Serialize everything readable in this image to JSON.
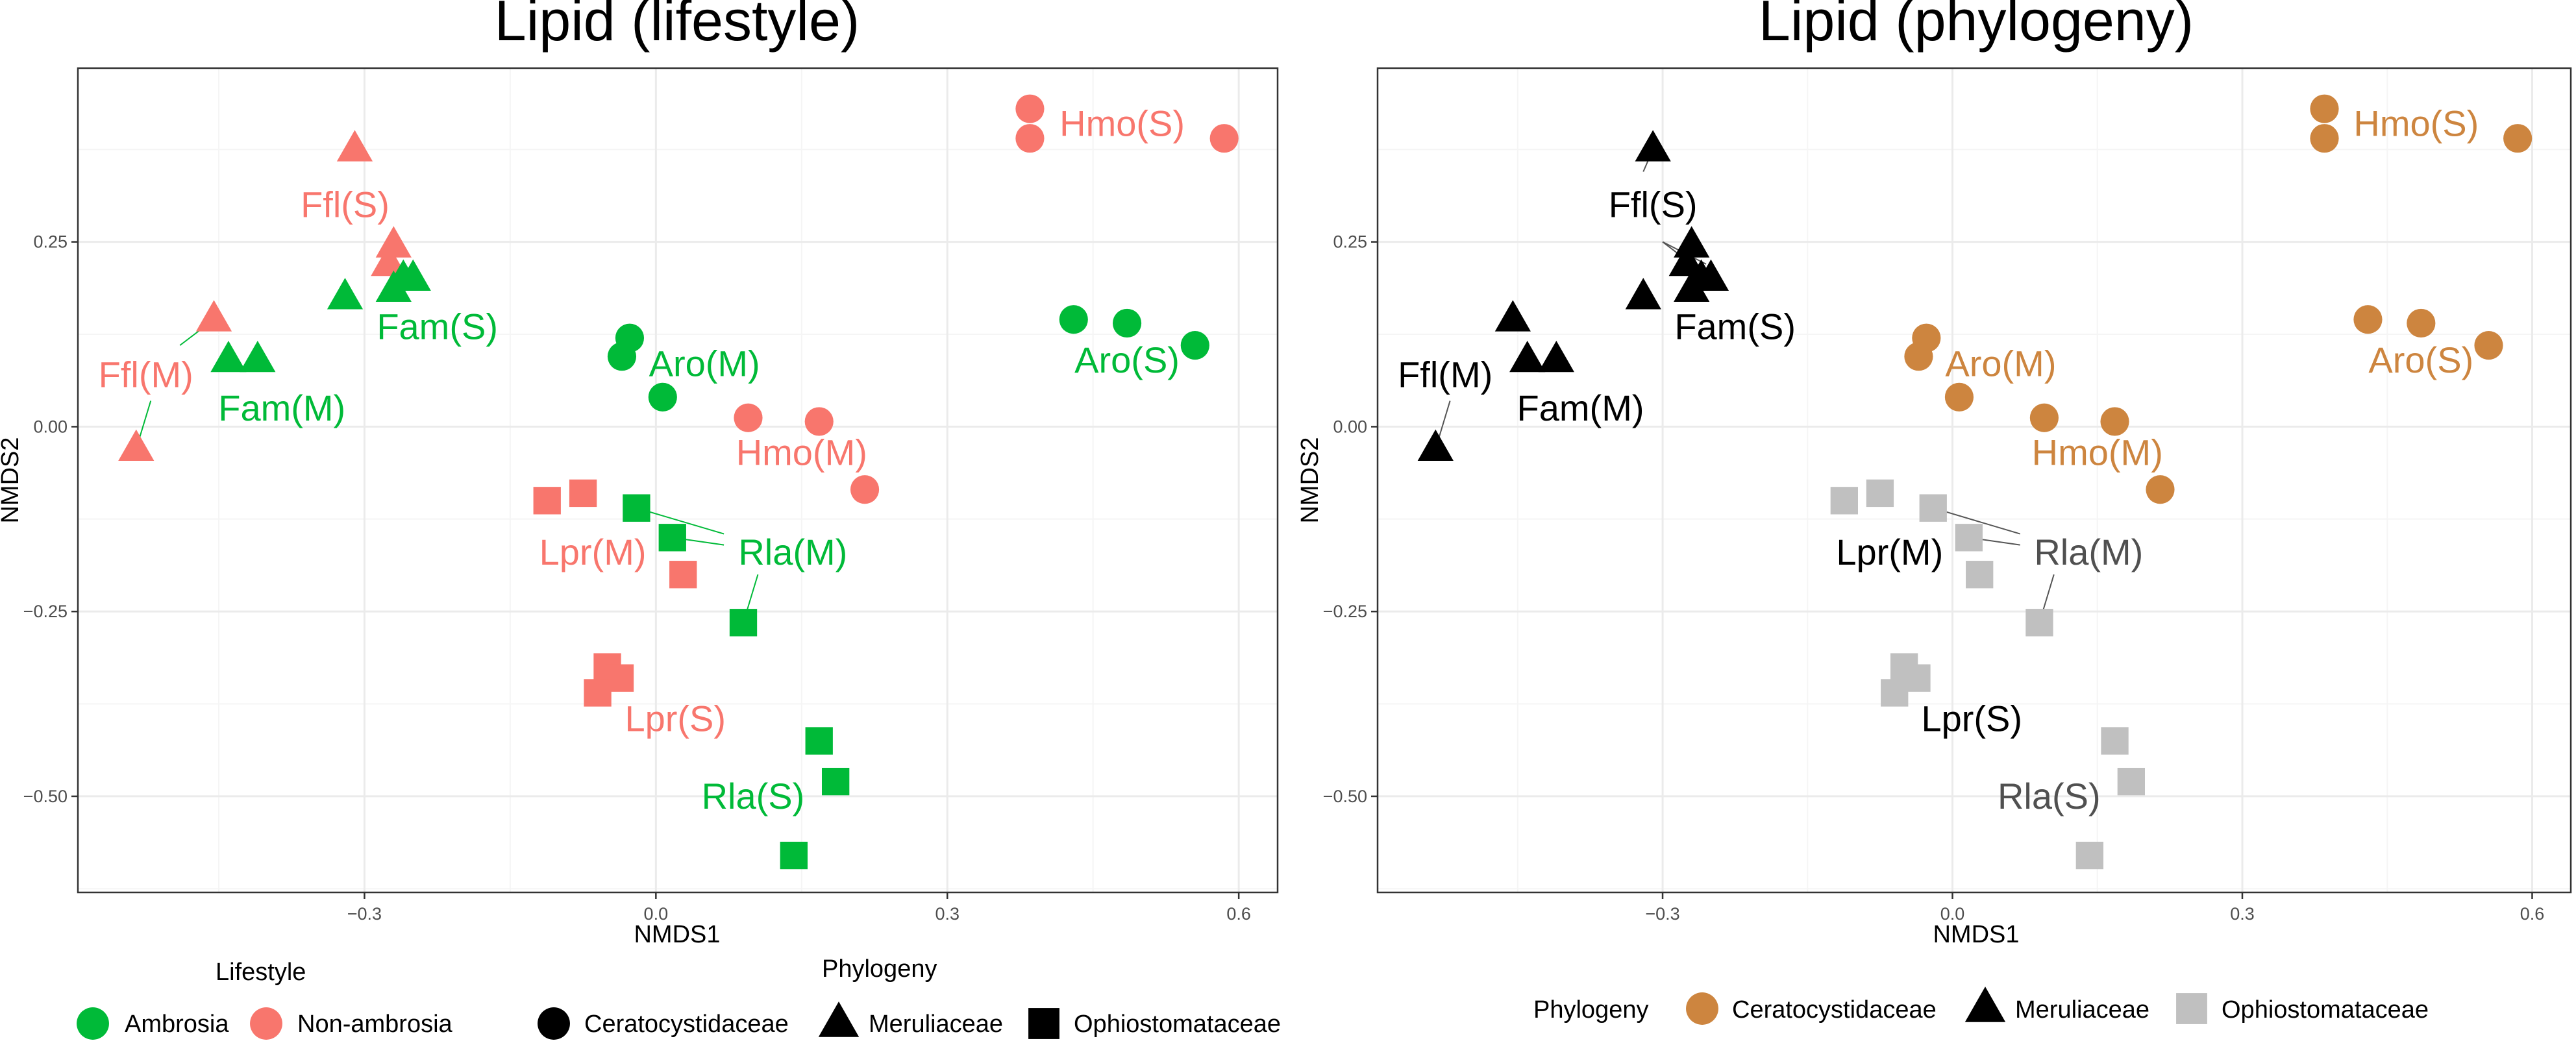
{
  "colors": {
    "ambrosia": "#00BA38",
    "non_ambrosia": "#F8766D",
    "ceratocystidaceae": "#CD853F",
    "meruliaceae": "#000000",
    "ophiostomataceae": "#C0C0C0",
    "ophio_label": "#505050",
    "grid_major": "#EBEBEB",
    "grid_minor": "#F5F5F5",
    "panel_border": "#333333",
    "axis_text": "#4D4D4D"
  },
  "chart_data": [
    {
      "type": "scatter",
      "title": "Lipid (lifestyle)",
      "xlabel": "NMDS1",
      "ylabel": "NMDS2",
      "xlim": [
        -0.595,
        0.64
      ],
      "ylim": [
        -0.63,
        0.485
      ],
      "x_ticks": [
        -0.3,
        0.0,
        0.3,
        0.6
      ],
      "x_tick_labels": [
        "−0.3",
        "0.0",
        "0.3",
        "0.6"
      ],
      "y_ticks": [
        0.25,
        0.0,
        -0.25,
        -0.5
      ],
      "y_tick_labels": [
        "0.25",
        "0.00",
        "−0.25",
        "−0.50"
      ],
      "grid": true,
      "color_by": "lifestyle",
      "points": [
        {
          "x": -0.31,
          "y": 0.375,
          "shape": "triangle",
          "lifestyle": "non_ambrosia",
          "phylogeny": "meruliaceae"
        },
        {
          "x": -0.27,
          "y": 0.245,
          "shape": "triangle",
          "lifestyle": "non_ambrosia",
          "phylogeny": "meruliaceae"
        },
        {
          "x": -0.275,
          "y": 0.22,
          "shape": "triangle",
          "lifestyle": "non_ambrosia",
          "phylogeny": "meruliaceae"
        },
        {
          "x": -0.32,
          "y": 0.175,
          "shape": "triangle",
          "lifestyle": "ambrosia",
          "phylogeny": "meruliaceae"
        },
        {
          "x": -0.26,
          "y": 0.2,
          "shape": "triangle",
          "lifestyle": "ambrosia",
          "phylogeny": "meruliaceae"
        },
        {
          "x": -0.25,
          "y": 0.2,
          "shape": "triangle",
          "lifestyle": "ambrosia",
          "phylogeny": "meruliaceae"
        },
        {
          "x": -0.27,
          "y": 0.185,
          "shape": "triangle",
          "lifestyle": "ambrosia",
          "phylogeny": "meruliaceae"
        },
        {
          "x": -0.455,
          "y": 0.145,
          "shape": "triangle",
          "lifestyle": "non_ambrosia",
          "phylogeny": "meruliaceae"
        },
        {
          "x": -0.535,
          "y": -0.03,
          "shape": "triangle",
          "lifestyle": "non_ambrosia",
          "phylogeny": "meruliaceae"
        },
        {
          "x": -0.44,
          "y": 0.09,
          "shape": "triangle",
          "lifestyle": "ambrosia",
          "phylogeny": "meruliaceae"
        },
        {
          "x": -0.41,
          "y": 0.09,
          "shape": "triangle",
          "lifestyle": "ambrosia",
          "phylogeny": "meruliaceae"
        },
        {
          "x": 0.385,
          "y": 0.43,
          "shape": "circle",
          "lifestyle": "non_ambrosia",
          "phylogeny": "ceratocystidaceae"
        },
        {
          "x": 0.385,
          "y": 0.39,
          "shape": "circle",
          "lifestyle": "non_ambrosia",
          "phylogeny": "ceratocystidaceae"
        },
        {
          "x": 0.585,
          "y": 0.39,
          "shape": "circle",
          "lifestyle": "non_ambrosia",
          "phylogeny": "ceratocystidaceae"
        },
        {
          "x": 0.43,
          "y": 0.145,
          "shape": "circle",
          "lifestyle": "ambrosia",
          "phylogeny": "ceratocystidaceae"
        },
        {
          "x": 0.485,
          "y": 0.14,
          "shape": "circle",
          "lifestyle": "ambrosia",
          "phylogeny": "ceratocystidaceae"
        },
        {
          "x": 0.555,
          "y": 0.11,
          "shape": "circle",
          "lifestyle": "ambrosia",
          "phylogeny": "ceratocystidaceae"
        },
        {
          "x": -0.027,
          "y": 0.12,
          "shape": "circle",
          "lifestyle": "ambrosia",
          "phylogeny": "ceratocystidaceae"
        },
        {
          "x": -0.035,
          "y": 0.095,
          "shape": "circle",
          "lifestyle": "ambrosia",
          "phylogeny": "ceratocystidaceae"
        },
        {
          "x": 0.007,
          "y": 0.04,
          "shape": "circle",
          "lifestyle": "ambrosia",
          "phylogeny": "ceratocystidaceae"
        },
        {
          "x": 0.095,
          "y": 0.012,
          "shape": "circle",
          "lifestyle": "non_ambrosia",
          "phylogeny": "ceratocystidaceae"
        },
        {
          "x": 0.168,
          "y": 0.007,
          "shape": "circle",
          "lifestyle": "non_ambrosia",
          "phylogeny": "ceratocystidaceae"
        },
        {
          "x": 0.215,
          "y": -0.085,
          "shape": "circle",
          "lifestyle": "non_ambrosia",
          "phylogeny": "ceratocystidaceae"
        },
        {
          "x": -0.112,
          "y": -0.1,
          "shape": "square",
          "lifestyle": "non_ambrosia",
          "phylogeny": "ophiostomataceae"
        },
        {
          "x": -0.075,
          "y": -0.09,
          "shape": "square",
          "lifestyle": "non_ambrosia",
          "phylogeny": "ophiostomataceae"
        },
        {
          "x": 0.028,
          "y": -0.2,
          "shape": "square",
          "lifestyle": "non_ambrosia",
          "phylogeny": "ophiostomataceae"
        },
        {
          "x": -0.02,
          "y": -0.11,
          "shape": "square",
          "lifestyle": "ambrosia",
          "phylogeny": "ophiostomataceae"
        },
        {
          "x": 0.017,
          "y": -0.15,
          "shape": "square",
          "lifestyle": "ambrosia",
          "phylogeny": "ophiostomataceae"
        },
        {
          "x": 0.09,
          "y": -0.265,
          "shape": "square",
          "lifestyle": "ambrosia",
          "phylogeny": "ophiostomataceae"
        },
        {
          "x": -0.05,
          "y": -0.325,
          "shape": "square",
          "lifestyle": "non_ambrosia",
          "phylogeny": "ophiostomataceae"
        },
        {
          "x": -0.037,
          "y": -0.34,
          "shape": "square",
          "lifestyle": "non_ambrosia",
          "phylogeny": "ophiostomataceae"
        },
        {
          "x": -0.06,
          "y": -0.36,
          "shape": "square",
          "lifestyle": "non_ambrosia",
          "phylogeny": "ophiostomataceae"
        },
        {
          "x": 0.168,
          "y": -0.425,
          "shape": "square",
          "lifestyle": "ambrosia",
          "phylogeny": "ophiostomataceae"
        },
        {
          "x": 0.185,
          "y": -0.48,
          "shape": "square",
          "lifestyle": "ambrosia",
          "phylogeny": "ophiostomataceae"
        },
        {
          "x": 0.142,
          "y": -0.58,
          "shape": "square",
          "lifestyle": "ambrosia",
          "phylogeny": "ophiostomataceae"
        }
      ],
      "labels": [
        {
          "text": "Hmo(S)",
          "x": 0.48,
          "y": 0.41,
          "color": "non_ambrosia"
        },
        {
          "text": "Ffl(S)",
          "x": -0.32,
          "y": 0.3,
          "color": "non_ambrosia"
        },
        {
          "text": "Fam(S)",
          "x": -0.225,
          "y": 0.135,
          "color": "ambrosia"
        },
        {
          "text": "Aro(M)",
          "x": 0.05,
          "y": 0.085,
          "color": "ambrosia"
        },
        {
          "text": "Aro(S)",
          "x": 0.485,
          "y": 0.09,
          "color": "ambrosia"
        },
        {
          "text": "Ffl(M)",
          "x": -0.525,
          "y": 0.07,
          "color": "non_ambrosia"
        },
        {
          "text": "Fam(M)",
          "x": -0.385,
          "y": 0.025,
          "color": "ambrosia"
        },
        {
          "text": "Hmo(M)",
          "x": 0.15,
          "y": -0.035,
          "color": "non_ambrosia"
        },
        {
          "text": "Lpr(M)",
          "x": -0.065,
          "y": -0.17,
          "color": "non_ambrosia"
        },
        {
          "text": "Rla(M)",
          "x": 0.141,
          "y": -0.17,
          "color": "ambrosia"
        },
        {
          "text": "Lpr(S)",
          "x": 0.02,
          "y": -0.395,
          "color": "non_ambrosia"
        },
        {
          "text": "Rla(S)",
          "x": 0.1,
          "y": -0.5,
          "color": "ambrosia"
        }
      ],
      "connectors": [
        {
          "from": [
            -0.455,
            0.145
          ],
          "to": [
            -0.49,
            0.11
          ]
        },
        {
          "from": [
            -0.535,
            -0.03
          ],
          "to": [
            -0.52,
            0.035
          ]
        },
        {
          "from": [
            -0.02,
            -0.11
          ],
          "to": [
            0.07,
            -0.145
          ]
        },
        {
          "from": [
            0.017,
            -0.15
          ],
          "to": [
            0.07,
            -0.16
          ]
        },
        {
          "from": [
            0.09,
            -0.265
          ],
          "to": [
            0.105,
            -0.2
          ]
        }
      ]
    },
    {
      "type": "scatter",
      "title": "Lipid (phylogeny)",
      "xlabel": "NMDS1",
      "ylabel": "NMDS2",
      "xlim": [
        -0.595,
        0.64
      ],
      "ylim": [
        -0.63,
        0.485
      ],
      "x_ticks": [
        -0.3,
        0.0,
        0.3,
        0.6
      ],
      "x_tick_labels": [
        "−0.3",
        "0.0",
        "0.3",
        "0.6"
      ],
      "y_ticks": [
        0.25,
        0.0,
        -0.25,
        -0.5
      ],
      "y_tick_labels": [
        "0.25",
        "0.00",
        "−0.25",
        "−0.50"
      ],
      "grid": true,
      "color_by": "phylogeny",
      "labels": [
        {
          "text": "Hmo(S)",
          "x": 0.48,
          "y": 0.41,
          "color": "ceratocystidaceae"
        },
        {
          "text": "Ffl(S)",
          "x": -0.31,
          "y": 0.3,
          "color": "meruliaceae"
        },
        {
          "text": "Fam(S)",
          "x": -0.225,
          "y": 0.135,
          "color": "meruliaceae"
        },
        {
          "text": "Aro(M)",
          "x": 0.05,
          "y": 0.085,
          "color": "ceratocystidaceae"
        },
        {
          "text": "Aro(S)",
          "x": 0.485,
          "y": 0.09,
          "color": "ceratocystidaceae"
        },
        {
          "text": "Ffl(M)",
          "x": -0.525,
          "y": 0.07,
          "color": "meruliaceae"
        },
        {
          "text": "Fam(M)",
          "x": -0.385,
          "y": 0.025,
          "color": "meruliaceae"
        },
        {
          "text": "Hmo(M)",
          "x": 0.15,
          "y": -0.035,
          "color": "ceratocystidaceae"
        },
        {
          "text": "Lpr(M)",
          "x": -0.065,
          "y": -0.17,
          "color": "meruliaceae"
        },
        {
          "text": "Rla(M)",
          "x": 0.141,
          "y": -0.17,
          "color": "ophio_label"
        },
        {
          "text": "Lpr(S)",
          "x": 0.02,
          "y": -0.395,
          "color": "meruliaceae"
        },
        {
          "text": "Rla(S)",
          "x": 0.1,
          "y": -0.5,
          "color": "ophio_label"
        }
      ],
      "connectors": [
        {
          "from": [
            -0.31,
            0.375
          ],
          "to": [
            -0.32,
            0.345
          ]
        },
        {
          "from": [
            -0.3,
            0.25
          ],
          "to": [
            -0.27,
            0.22
          ]
        },
        {
          "from": [
            -0.3,
            0.25
          ],
          "to": [
            -0.255,
            0.22
          ]
        },
        {
          "from": [
            -0.535,
            -0.03
          ],
          "to": [
            -0.52,
            0.035
          ]
        },
        {
          "from": [
            -0.02,
            -0.11
          ],
          "to": [
            0.07,
            -0.145
          ]
        },
        {
          "from": [
            0.017,
            -0.15
          ],
          "to": [
            0.07,
            -0.16
          ]
        },
        {
          "from": [
            0.09,
            -0.265
          ],
          "to": [
            0.105,
            -0.2
          ]
        }
      ]
    }
  ],
  "legend_left": {
    "lifestyle_title": "Lifestyle",
    "phylogeny_title": "Phylogeny",
    "lifestyle_items": [
      {
        "label": "Ambrosia",
        "color": "ambrosia"
      },
      {
        "label": "Non-ambrosia",
        "color": "non_ambrosia"
      }
    ],
    "phylogeny_items": [
      {
        "label": "Ceratocystidaceae",
        "shape": "circle"
      },
      {
        "label": "Meruliaceae",
        "shape": "triangle"
      },
      {
        "label": "Ophiostomataceae",
        "shape": "square"
      }
    ]
  },
  "legend_right": {
    "title": "Phylogeny",
    "items": [
      {
        "label": "Ceratocystidaceae",
        "shape": "circle",
        "color": "ceratocystidaceae"
      },
      {
        "label": "Meruliaceae",
        "shape": "triangle",
        "color": "meruliaceae"
      },
      {
        "label": "Ophiostomataceae",
        "shape": "square",
        "color": "ophiostomataceae"
      }
    ]
  }
}
